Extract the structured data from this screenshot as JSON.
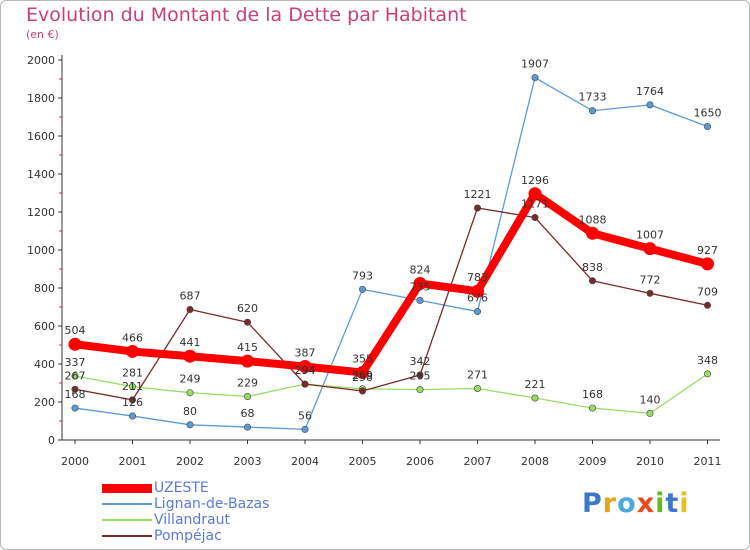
{
  "header": {
    "title": "Evolution du Montant de la Dette par Habitant",
    "subtitle": "(en €)"
  },
  "logo": {
    "text": "Proxiti",
    "letter_colors": [
      "#3a78c8",
      "#e8a020",
      "#4aa8e0",
      "#e84a20",
      "#6ab820",
      "#3a78c8",
      "#e8c020"
    ]
  },
  "colors": {
    "title": "#c8407a",
    "legend_text": "#5a7ad6",
    "axis": "#333333"
  },
  "chart_data": {
    "type": "line",
    "title": "Evolution du Montant de la Dette par Habitant",
    "subtitle": "(en €)",
    "x": [
      "2000",
      "2001",
      "2002",
      "2003",
      "2004",
      "2005",
      "2006",
      "2007",
      "2008",
      "2009",
      "2010",
      "2011"
    ],
    "ylim": [
      0,
      2000
    ],
    "yticks": [
      "0",
      "200",
      "400",
      "600",
      "800",
      "1000",
      "1200",
      "1400",
      "1600",
      "1800",
      "2000"
    ],
    "grid": false,
    "legend_position": "bottom-left",
    "series": [
      {
        "name": "Lignan-de-Bazas",
        "color": "#5b9bd5",
        "values": [
          168,
          126,
          80,
          68,
          56,
          793,
          735,
          676,
          1907,
          1733,
          1764,
          1650
        ],
        "labels": [
          "168",
          "126",
          "80",
          "68",
          "56",
          "793",
          "735",
          "676",
          "1907",
          "1733",
          "1764",
          "1650"
        ]
      },
      {
        "name": "Villandraut",
        "color": "#99dd66",
        "values": [
          337,
          281,
          249,
          229,
          294,
          269,
          265,
          271,
          221,
          168,
          140,
          348
        ],
        "labels": [
          "337",
          "281",
          "249",
          "229",
          "294",
          "269",
          "265",
          "271",
          "221",
          "168",
          "140",
          "348"
        ]
      },
      {
        "name": "Pompéjac",
        "color": "#7a2a2a",
        "values": [
          267,
          211,
          687,
          620,
          294,
          258,
          342,
          1221,
          1171,
          838,
          772,
          709
        ],
        "labels": [
          "267",
          "211",
          "687",
          "620",
          "294",
          "258",
          "342",
          "1221",
          "1171",
          "838",
          "772",
          "709"
        ]
      },
      {
        "name": "UZESTE",
        "color": "#ff0000",
        "values": [
          504,
          466,
          441,
          415,
          387,
          355,
          824,
          783,
          1296,
          1088,
          1007,
          927
        ],
        "labels": [
          "504",
          "466",
          "441",
          "415",
          "387",
          "355",
          "824",
          "783",
          "1296",
          "1088",
          "1007",
          "927"
        ]
      }
    ],
    "legend": [
      "UZESTE",
      "Lignan-de-Bazas",
      "Villandraut",
      "Pompéjac"
    ]
  }
}
